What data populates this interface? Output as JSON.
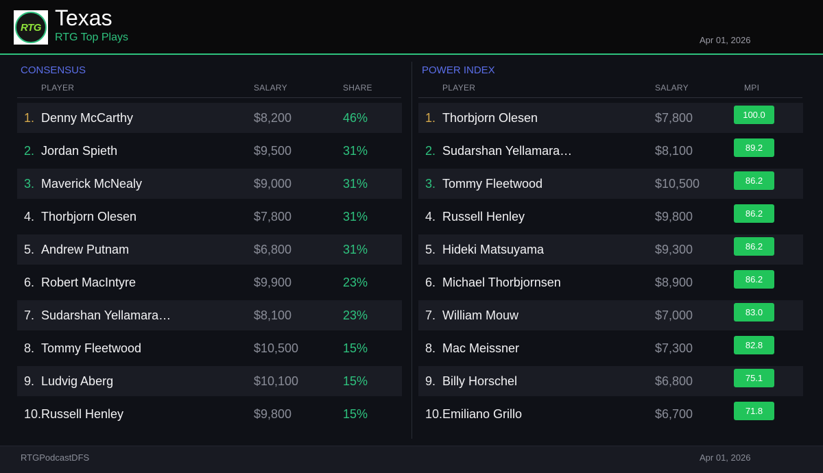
{
  "header": {
    "title": "Texas",
    "subtitle": "RTG Top Plays",
    "date": "Apr 01, 2026",
    "logo_text": "RTG",
    "logo_icon": "rtg-logo-icon"
  },
  "colors": {
    "accent": "#2ec27e",
    "section_title": "#5b6ee8",
    "rank_gold": "#d4a84b",
    "mpi_badge": "#21c45a",
    "background": "#0f1117"
  },
  "consensus": {
    "title": "CONSENSUS",
    "columns": {
      "player": "PLAYER",
      "salary": "SALARY",
      "share": "SHARE"
    },
    "rows": [
      {
        "rank": "1.",
        "player": "Denny McCarthy",
        "salary": "$8,200",
        "share": "46%"
      },
      {
        "rank": "2.",
        "player": "Jordan Spieth",
        "salary": "$9,500",
        "share": "31%"
      },
      {
        "rank": "3.",
        "player": "Maverick McNealy",
        "salary": "$9,000",
        "share": "31%"
      },
      {
        "rank": "4.",
        "player": "Thorbjorn Olesen",
        "salary": "$7,800",
        "share": "31%"
      },
      {
        "rank": "5.",
        "player": "Andrew Putnam",
        "salary": "$6,800",
        "share": "31%"
      },
      {
        "rank": "6.",
        "player": "Robert MacIntyre",
        "salary": "$9,900",
        "share": "23%"
      },
      {
        "rank": "7.",
        "player": "Sudarshan Yellamara…",
        "salary": "$8,100",
        "share": "23%"
      },
      {
        "rank": "8.",
        "player": "Tommy Fleetwood",
        "salary": "$10,500",
        "share": "15%"
      },
      {
        "rank": "9.",
        "player": "Ludvig Aberg",
        "salary": "$10,100",
        "share": "15%"
      },
      {
        "rank": "10.",
        "player": "Russell Henley",
        "salary": "$9,800",
        "share": "15%"
      }
    ]
  },
  "power_index": {
    "title": "POWER INDEX",
    "columns": {
      "player": "PLAYER",
      "salary": "SALARY",
      "mpi": "MPI"
    },
    "rows": [
      {
        "rank": "1.",
        "player": "Thorbjorn Olesen",
        "salary": "$7,800",
        "mpi": "100.0"
      },
      {
        "rank": "2.",
        "player": "Sudarshan Yellamara…",
        "salary": "$8,100",
        "mpi": "89.2"
      },
      {
        "rank": "3.",
        "player": "Tommy Fleetwood",
        "salary": "$10,500",
        "mpi": "86.2"
      },
      {
        "rank": "4.",
        "player": "Russell Henley",
        "salary": "$9,800",
        "mpi": "86.2"
      },
      {
        "rank": "5.",
        "player": "Hideki Matsuyama",
        "salary": "$9,300",
        "mpi": "86.2"
      },
      {
        "rank": "6.",
        "player": "Michael Thorbjornsen",
        "salary": "$8,900",
        "mpi": "86.2"
      },
      {
        "rank": "7.",
        "player": "William Mouw",
        "salary": "$7,000",
        "mpi": "83.0"
      },
      {
        "rank": "8.",
        "player": "Mac Meissner",
        "salary": "$7,300",
        "mpi": "82.8"
      },
      {
        "rank": "9.",
        "player": "Billy Horschel",
        "salary": "$6,800",
        "mpi": "75.1"
      },
      {
        "rank": "10.",
        "player": "Emiliano Grillo",
        "salary": "$6,700",
        "mpi": "71.8"
      }
    ]
  },
  "footer": {
    "handle": "RTGPodcastDFS",
    "date": "Apr 01, 2026"
  }
}
